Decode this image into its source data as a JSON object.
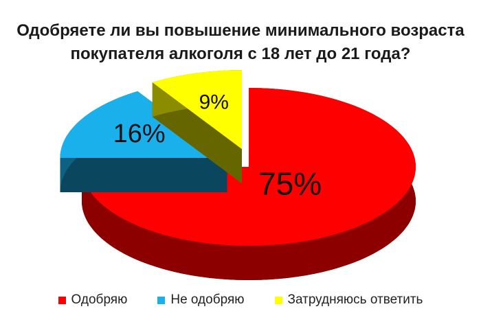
{
  "chart_data": {
    "type": "pie3d",
    "title": "Одобряете ли вы повышение минимального возраста покупателя алкоголя с 18 лет до 21 года?",
    "categories": [
      "Одобряю",
      "Не одобряю",
      "Затрудняюсь ответить"
    ],
    "values": [
      75,
      16,
      9
    ],
    "value_labels": [
      "75%",
      "16%",
      "9%"
    ],
    "colors": [
      "#ff0000",
      "#1ab0ec",
      "#ffff00"
    ],
    "legend": "bottom"
  }
}
